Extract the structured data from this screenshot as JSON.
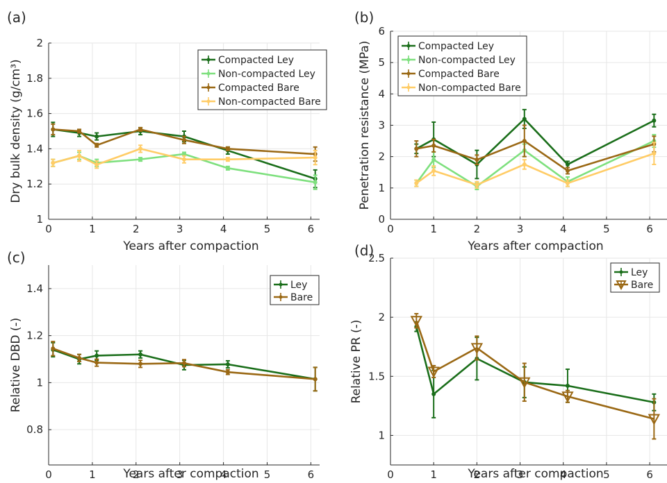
{
  "chart_data": [
    {
      "panel": "(a)",
      "type": "line",
      "xlabel": "Years after compaction",
      "ylabel": "Dry bulk density (g/cm³)",
      "xlim": [
        0,
        6.2
      ],
      "ylim": [
        1,
        2
      ],
      "xticks": [
        0,
        1,
        2,
        3,
        4,
        5,
        6
      ],
      "yticks": [
        1,
        1.2,
        1.4,
        1.6,
        1.8,
        2
      ],
      "grid": true,
      "legend_position": "top-right",
      "series": [
        {
          "name": "Compacted Ley",
          "color": "#1a6e1a",
          "marker": "dot",
          "x": [
            0.1,
            0.7,
            1.1,
            2.1,
            3.1,
            4.1,
            6.1
          ],
          "y": [
            1.51,
            1.49,
            1.47,
            1.5,
            1.47,
            1.39,
            1.23
          ],
          "err": [
            0.04,
            0.02,
            0.02,
            0.02,
            0.03,
            0.02,
            0.05
          ]
        },
        {
          "name": "Non-compacted Ley",
          "color": "#7ee07e",
          "marker": "dot",
          "x": [
            0.1,
            0.7,
            1.1,
            2.1,
            3.1,
            4.1,
            6.1
          ],
          "y": [
            1.32,
            1.36,
            1.32,
            1.34,
            1.37,
            1.29,
            1.21
          ],
          "err": [
            0.02,
            0.02,
            0.02,
            0.01,
            0.01,
            0.01,
            0.04
          ]
        },
        {
          "name": "Compacted Bare",
          "color": "#9a6814",
          "marker": "dot",
          "x": [
            0.1,
            0.7,
            1.1,
            2.1,
            3.1,
            4.1,
            6.1
          ],
          "y": [
            1.51,
            1.5,
            1.42,
            1.51,
            1.45,
            1.4,
            1.37
          ],
          "err": [
            0.03,
            0.01,
            0.01,
            0.01,
            0.02,
            0.01,
            0.04
          ]
        },
        {
          "name": "Non-compacted Bare",
          "color": "#ffcc66",
          "marker": "dot",
          "x": [
            0.1,
            0.7,
            1.1,
            2.1,
            3.1,
            4.1,
            6.1
          ],
          "y": [
            1.32,
            1.36,
            1.31,
            1.4,
            1.34,
            1.34,
            1.35
          ],
          "err": [
            0.02,
            0.03,
            0.02,
            0.02,
            0.02,
            0.01,
            0.04
          ]
        }
      ]
    },
    {
      "panel": "(b)",
      "type": "line",
      "xlabel": "Years after compaction",
      "ylabel": "Penetration resistance (MPa)",
      "xlim": [
        0,
        6.4
      ],
      "ylim": [
        0,
        6
      ],
      "xticks": [
        0,
        1,
        2,
        3,
        4,
        5,
        6
      ],
      "yticks": [
        0,
        1,
        2,
        3,
        4,
        5,
        6
      ],
      "grid": true,
      "legend_position": "top-left",
      "series": [
        {
          "name": "Compacted Ley",
          "color": "#1a6e1a",
          "marker": "dot",
          "x": [
            0.6,
            1,
            2,
            3.1,
            4.1,
            6.1
          ],
          "y": [
            2.25,
            2.55,
            1.75,
            3.2,
            1.75,
            3.15
          ],
          "err": [
            0.15,
            0.55,
            0.45,
            0.3,
            0.1,
            0.2
          ]
        },
        {
          "name": "Non-compacted Ley",
          "color": "#7ee07e",
          "marker": "dot",
          "x": [
            0.6,
            1,
            2,
            3.1,
            4.1,
            6.1
          ],
          "y": [
            1.15,
            1.9,
            1.05,
            2.2,
            1.2,
            2.5
          ],
          "err": [
            0.1,
            0.25,
            0.1,
            0.2,
            0.15,
            0.2
          ]
        },
        {
          "name": "Compacted Bare",
          "color": "#9a6814",
          "marker": "dot",
          "x": [
            0.6,
            1,
            2,
            3.1,
            4.1,
            6.1
          ],
          "y": [
            2.25,
            2.35,
            1.9,
            2.5,
            1.55,
            2.4
          ],
          "err": [
            0.25,
            0.2,
            0.15,
            0.5,
            0.1,
            0.25
          ]
        },
        {
          "name": "Non-compacted Bare",
          "color": "#ffcc66",
          "marker": "dot",
          "x": [
            0.6,
            1,
            2,
            3.1,
            4.1,
            6.1
          ],
          "y": [
            1.15,
            1.55,
            1.1,
            1.75,
            1.15,
            2.1
          ],
          "err": [
            0.1,
            0.15,
            0.1,
            0.15,
            0.1,
            0.35
          ]
        }
      ]
    },
    {
      "panel": "(c)",
      "type": "line",
      "xlabel": "Years after compaction",
      "ylabel": "Relative DBD (-)",
      "xlim": [
        0,
        6.2
      ],
      "ylim": [
        0.65,
        1.5
      ],
      "xticks": [
        0,
        1,
        2,
        3,
        4,
        5,
        6
      ],
      "yticks": [
        0.8,
        1,
        1.2,
        1.4
      ],
      "grid": true,
      "legend_position": "top-right",
      "series": [
        {
          "name": "Ley",
          "color": "#1a6e1a",
          "marker": "dot",
          "x": [
            0.1,
            0.7,
            1.1,
            2.1,
            3.1,
            4.1,
            6.1
          ],
          "y": [
            1.14,
            1.1,
            1.115,
            1.12,
            1.075,
            1.078,
            1.015
          ],
          "err": [
            0.03,
            0.02,
            0.02,
            0.015,
            0.02,
            0.015,
            0.05
          ]
        },
        {
          "name": "Bare",
          "color": "#9a6814",
          "marker": "dot",
          "x": [
            0.1,
            0.7,
            1.1,
            2.1,
            3.1,
            4.1,
            6.1
          ],
          "y": [
            1.145,
            1.105,
            1.085,
            1.08,
            1.083,
            1.045,
            1.015
          ],
          "err": [
            0.03,
            0.015,
            0.015,
            0.015,
            0.015,
            0.01,
            0.05
          ]
        }
      ]
    },
    {
      "panel": "(d)",
      "type": "line",
      "xlabel": "Years after compaction",
      "ylabel": "Relative PR (-)",
      "xlim": [
        0,
        6.4
      ],
      "ylim": [
        0.75,
        2.5
      ],
      "xticks": [
        0,
        1,
        2,
        3,
        4,
        5,
        6
      ],
      "yticks": [
        1,
        1.5,
        2,
        2.5
      ],
      "grid": true,
      "legend_position": "top-right",
      "series": [
        {
          "name": "Ley",
          "color": "#1a6e1a",
          "marker": "dot",
          "x": [
            0.6,
            1,
            2,
            3.1,
            4.1,
            6.1
          ],
          "y": [
            1.92,
            1.35,
            1.65,
            1.45,
            1.42,
            1.28
          ],
          "err": [
            0.04,
            0.2,
            0.18,
            0.13,
            0.14,
            0.07
          ]
        },
        {
          "name": "Bare",
          "color": "#9a6814",
          "marker": "triangle-down",
          "x": [
            0.6,
            1,
            2,
            3.1,
            4.1,
            6.1
          ],
          "y": [
            1.97,
            1.54,
            1.74,
            1.45,
            1.33,
            1.14
          ],
          "err": [
            0.06,
            0.05,
            0.1,
            0.16,
            0.05,
            0.17
          ]
        }
      ]
    }
  ]
}
